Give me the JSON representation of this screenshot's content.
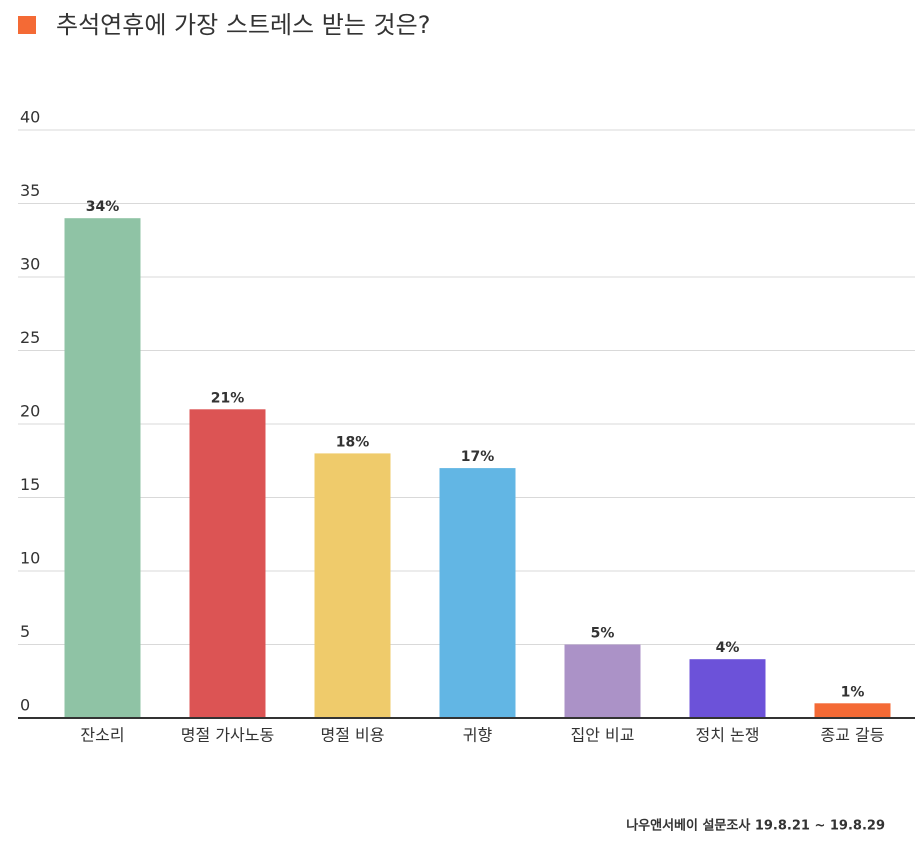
{
  "chart_data": {
    "type": "bar",
    "title": "추석연휴에 가장 스트레스 받는 것은?",
    "categories": [
      "잔소리",
      "명절 가사노동",
      "명절 비용",
      "귀향",
      "집안 비교",
      "정치 논쟁",
      "종교 갈등"
    ],
    "values": [
      34,
      21,
      18,
      17,
      5,
      4,
      1
    ],
    "value_labels": [
      "34%",
      "21%",
      "18%",
      "17%",
      "5%",
      "4%",
      "1%"
    ],
    "colors": [
      "#8fc3a5",
      "#dc5454",
      "#efcb6b",
      "#62b6e4",
      "#ab92c7",
      "#6c52d9",
      "#f46a35"
    ],
    "ylim": [
      0,
      40
    ],
    "yticks": [
      0,
      5,
      10,
      15,
      20,
      25,
      30,
      35,
      40
    ],
    "grid": true,
    "source": "나우앤서베이 설문조사 19.8.21 ~ 19.8.29"
  }
}
